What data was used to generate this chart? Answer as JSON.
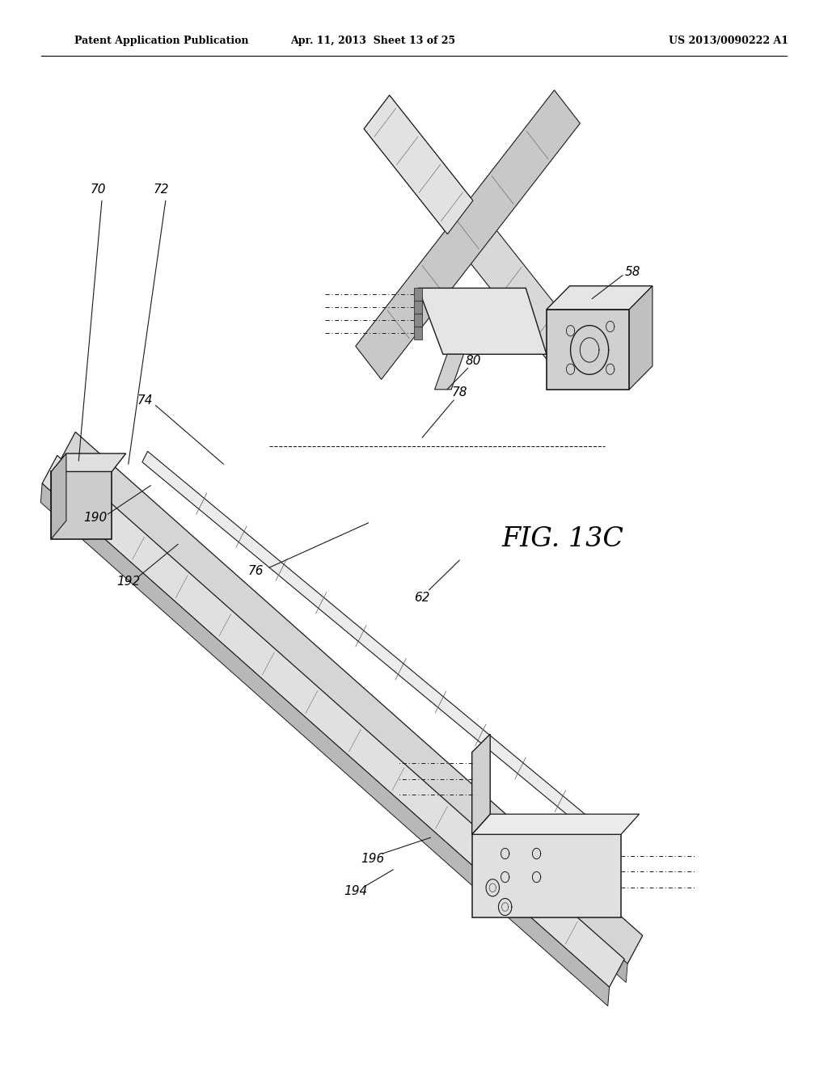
{
  "background_color": "#ffffff",
  "header_left": "Patent Application Publication",
  "header_center": "Apr. 11, 2013  Sheet 13 of 25",
  "header_right": "US 2013/0090222 A1",
  "figure_label": "FIG. 13C",
  "dark": "#1a1a1a",
  "med": "#555555",
  "light": "#aaaaaa"
}
